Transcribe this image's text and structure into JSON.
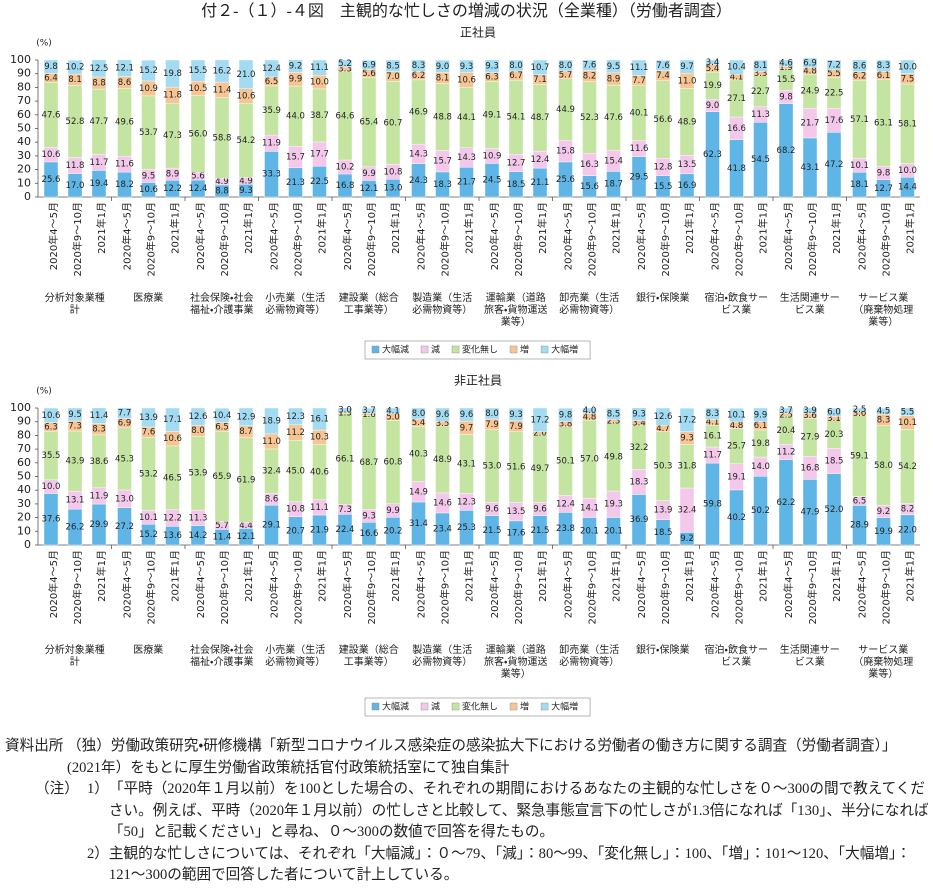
{
  "title": "付２-（１）-４図　主観的な忙しさの増減の状況（全業種）（労働者調査）",
  "chart_data": [
    {
      "type": "bar",
      "stacked": true,
      "subtitle": "正社員",
      "y_unit": "(%)",
      "ylim": [
        0,
        100
      ],
      "yticks": [
        0,
        10,
        20,
        30,
        40,
        50,
        60,
        70,
        80,
        90,
        100
      ],
      "grid": false,
      "legend": "bottom",
      "groups": [
        "分析対象業種計",
        "医療業",
        "社会保険・社会福祉・介護事業",
        "小売業（生活必需物資等）",
        "建設業（総合工事業等）",
        "製造業（生活必需物資等）",
        "運輸業（道路旅客・貨物運送業等）",
        "卸売業（生活必需物資等）",
        "銀行・保険業",
        "宿泊・飲食サービス業",
        "生活関連サービス業",
        "サービス業（廃棄物処理業等）"
      ],
      "categories": [
        "2020年4～5月",
        "2020年9～10月",
        "2021年1月",
        "2020年4～5月",
        "2020年9～10月",
        "2021年1月",
        "2020年4～5月",
        "2020年9～10月",
        "2021年1月",
        "2020年4～5月",
        "2020年9～10月",
        "2021年1月",
        "2020年4～5月",
        "2020年9～10月",
        "2021年1月",
        "2020年4～5月",
        "2020年9～10月",
        "2021年1月",
        "2020年4～5月",
        "2020年9～10月",
        "2021年1月",
        "2020年4～5月",
        "2020年9～10月",
        "2021年1月",
        "2020年4～5月",
        "2020年9～10月",
        "2021年1月",
        "2020年4～5月",
        "2020年9～10月",
        "2021年1月",
        "2020年4～5月",
        "2020年9～10月",
        "2021年1月",
        "2020年4～5月",
        "2020年9～10月",
        "2021年1月"
      ],
      "series": [
        {
          "name": "大幅減",
          "color": "#5fb6e6",
          "values": [
            25.6,
            17.0,
            19.4,
            18.2,
            10.6,
            12.2,
            12.4,
            8.8,
            9.3,
            33.3,
            21.3,
            22.5,
            16.8,
            12.1,
            13.0,
            24.3,
            18.3,
            21.7,
            24.5,
            18.5,
            21.1,
            25.6,
            15.6,
            18.7,
            29.5,
            15.5,
            16.9,
            62.3,
            41.8,
            54.5,
            68.2,
            43.1,
            47.2,
            18.1,
            12.7,
            14.4
          ],
          "value_labels": [
            "25.6",
            "17.0",
            "19.4",
            "18.2",
            "10.6",
            "12.2",
            "12.4",
            "8.8",
            "9.3",
            "33.3",
            "21.3",
            "22.5",
            "16.8",
            "12.1",
            "13.0",
            "24.3",
            "18.3",
            "21.7",
            "24.5",
            "18.5",
            "21.1",
            "25.6",
            "15.6",
            "18.7",
            "29.5",
            "15.5",
            "16.9",
            "62.3",
            "41.8",
            "54.5",
            "68.2",
            "43.1",
            "47.2",
            "18.1",
            "12.7",
            "14.4"
          ]
        },
        {
          "name": "減",
          "color": "#f3c8ea",
          "values": [
            10.6,
            11.8,
            11.7,
            11.6,
            9.5,
            8.9,
            5.6,
            4.9,
            4.9,
            11.9,
            15.7,
            17.7,
            10.2,
            9.9,
            10.8,
            14.3,
            15.7,
            14.3,
            10.9,
            12.7,
            12.4,
            15.8,
            16.3,
            15.4,
            11.6,
            12.8,
            13.5,
            9.0,
            16.6,
            11.3,
            9.8,
            21.7,
            17.6,
            10.1,
            9.8,
            10.0
          ],
          "value_labels": [
            "10.6",
            "11.8",
            "11.7",
            "11.6",
            "9.5",
            "8.9",
            "5.6",
            "4.9",
            "4.9",
            "11.9",
            "15.7",
            "17.7",
            "10.2",
            "9.9",
            "10.8",
            "14.3",
            "15.7",
            "14.3",
            "10.9",
            "12.7",
            "12.4",
            "15.8",
            "16.3",
            "15.4",
            "11.6",
            "12.8",
            "13.5",
            "9.0",
            "16.6",
            "11.3",
            "9.8",
            "21.7",
            "17.6",
            "10.1",
            "9.8",
            "10.0"
          ]
        },
        {
          "name": "変化無し",
          "color": "#c4e4a2",
          "values": [
            47.6,
            52.8,
            47.7,
            49.6,
            53.7,
            47.3,
            56.0,
            58.8,
            54.2,
            35.9,
            44.0,
            38.7,
            64.6,
            65.4,
            60.7,
            46.9,
            48.8,
            44.1,
            49.1,
            54.1,
            48.7,
            44.9,
            52.3,
            47.6,
            40.1,
            56.6,
            48.9,
            19.9,
            27.1,
            22.7,
            15.5,
            24.9,
            22.5,
            57.1,
            63.1,
            58.1
          ],
          "value_labels": [
            "47.6",
            "52.8",
            "47.7",
            "49.6",
            "53.7",
            "47.3",
            "56.0",
            "58.8",
            "54.2",
            "35.9",
            "44.0",
            "38.7",
            "64.6",
            "65.4",
            "60.7",
            "46.9",
            "48.8",
            "44.1",
            "49.1",
            "54.1",
            "48.7",
            "44.9",
            "52.3",
            "47.6",
            "40.1",
            "56.6",
            "48.9",
            "19.9",
            "27.1",
            "22.7",
            "15.5",
            "24.9",
            "22.5",
            "57.1",
            "63.1",
            "58.1"
          ]
        },
        {
          "name": "増",
          "color": "#f7c493",
          "values": [
            6.4,
            8.1,
            8.8,
            8.6,
            10.9,
            11.8,
            10.5,
            11.4,
            10.6,
            6.5,
            9.9,
            10.0,
            3.3,
            5.6,
            7.0,
            6.2,
            8.1,
            10.6,
            6.3,
            6.7,
            7.1,
            5.7,
            8.2,
            8.9,
            7.7,
            7.4,
            11.0,
            5.4,
            4.1,
            3.3,
            1.9,
            4.8,
            5.5,
            6.2,
            6.1,
            7.5
          ],
          "value_labels": [
            "6.4",
            "8.1",
            "8.8",
            "8.6",
            "10.9",
            "11.8",
            "10.5",
            "11.4",
            "10.6",
            "6.5",
            "9.9",
            "10.0",
            "3.3",
            "5.6",
            "7.0",
            "6.2",
            "8.1",
            "10.6",
            "6.3",
            "6.7",
            "7.1",
            "5.7",
            "8.2",
            "8.9",
            "7.7",
            "7.4",
            "11.0",
            "5.4",
            "4.1",
            "3.3",
            "1.9",
            "4.8",
            "5.5",
            "6.2",
            "6.1",
            "7.5"
          ]
        },
        {
          "name": "大幅増",
          "color": "#a3dcf2",
          "values": [
            9.8,
            10.2,
            12.5,
            12.1,
            15.2,
            19.8,
            15.5,
            16.2,
            21.0,
            12.4,
            9.2,
            11.1,
            5.2,
            6.9,
            8.5,
            8.3,
            9.0,
            9.3,
            9.3,
            8.0,
            10.7,
            8.0,
            7.6,
            9.5,
            11.1,
            7.6,
            9.7,
            3.4,
            10.4,
            8.1,
            4.6,
            6.9,
            7.2,
            8.6,
            8.3,
            10.0
          ],
          "value_labels": [
            "9.8",
            "10.2",
            "12.5",
            "12.1",
            "15.2",
            "19.8",
            "15.5",
            "16.2",
            "21.0",
            "12.4",
            "9.2",
            "11.1",
            "5.2",
            "6.9",
            "8.5",
            "8.3",
            "9.0",
            "9.3",
            "9.3",
            "8.0",
            "10.7",
            "8.0",
            "7.6",
            "9.5",
            "11.1",
            "7.6",
            "9.7",
            "3.4",
            "10.4",
            "8.1",
            "4.6",
            "6.9",
            "7.2",
            "8.6",
            "8.3",
            "10.0"
          ]
        }
      ]
    },
    {
      "type": "bar",
      "stacked": true,
      "subtitle": "非正社員",
      "y_unit": "(%)",
      "ylim": [
        0,
        100
      ],
      "yticks": [
        0,
        10,
        20,
        30,
        40,
        50,
        60,
        70,
        80,
        90,
        100
      ],
      "grid": false,
      "legend": "bottom",
      "groups": [
        "分析対象業種計",
        "医療業",
        "社会保険・社会福祉・介護事業",
        "小売業（生活必需物資等）",
        "建設業（総合工事業等）",
        "製造業（生活必需物資等）",
        "運輸業（道路旅客・貨物運送業等）",
        "卸売業（生活必需物資等）",
        "銀行・保険業",
        "宿泊・飲食サービス業",
        "生活関連サービス業",
        "サービス業（廃棄物処理業等）"
      ],
      "categories": [
        "2020年4～5月",
        "2020年9～10月",
        "2021年1月",
        "2020年4～5月",
        "2020年9～10月",
        "2021年1月",
        "2020年4～5月",
        "2020年9～10月",
        "2021年1月",
        "2020年4～5月",
        "2020年9～10月",
        "2021年1月",
        "2020年4～5月",
        "2020年9～10月",
        "2021年1月",
        "2020年4～5月",
        "2020年9～10月",
        "2021年1月",
        "2020年4～5月",
        "2020年9～10月",
        "2021年1月",
        "2020年4～5月",
        "2020年9～10月",
        "2021年1月",
        "2020年4～5月",
        "2020年9～10月",
        "2021年1月",
        "2020年4～5月",
        "2020年9～10月",
        "2021年1月",
        "2020年4～5月",
        "2020年9～10月",
        "2021年1月",
        "2020年4～5月",
        "2020年9～10月",
        "2021年1月"
      ],
      "series": [
        {
          "name": "大幅減",
          "color": "#5fb6e6",
          "values": [
            37.6,
            26.2,
            29.9,
            27.2,
            15.2,
            13.6,
            14.2,
            11.4,
            12.1,
            29.1,
            20.7,
            21.9,
            22.4,
            16.6,
            20.2,
            31.4,
            23.4,
            25.3,
            21.5,
            17.6,
            21.5,
            23.8,
            20.1,
            20.1,
            36.9,
            18.5,
            9.2,
            59.8,
            40.2,
            50.2,
            62.2,
            47.9,
            52.0,
            28.9,
            19.9,
            22.0
          ],
          "value_labels": [
            "37.6",
            "26.2",
            "29.9",
            "27.2",
            "15.2",
            "13.6",
            "14.2",
            "11.4",
            "12.1",
            "29.1",
            "20.7",
            "21.9",
            "22.4",
            "16.6",
            "20.2",
            "31.4",
            "23.4",
            "25.3",
            "21.5",
            "17.6",
            "21.5",
            "23.8",
            "20.1",
            "20.1",
            "36.9",
            "18.5",
            "9.2",
            "59.8",
            "40.2",
            "50.2",
            "62.2",
            "47.9",
            "52.0",
            "28.9",
            "19.9",
            "22.0"
          ]
        },
        {
          "name": "減",
          "color": "#f3c8ea",
          "values": [
            10.0,
            13.1,
            11.9,
            13.0,
            10.1,
            12.2,
            11.3,
            5.7,
            4.4,
            8.6,
            10.8,
            11.1,
            7.3,
            9.3,
            9.9,
            14.9,
            14.6,
            12.3,
            9.6,
            13.5,
            9.6,
            12.4,
            14.1,
            19.3,
            18.3,
            13.9,
            32.4,
            11.7,
            19.1,
            14.0,
            11.2,
            16.8,
            18.5,
            6.5,
            9.2,
            8.2
          ],
          "value_labels": [
            "10.0",
            "13.1",
            "11.9",
            "13.0",
            "10.1",
            "12.2",
            "11.3",
            "5.7",
            "4.4",
            "8.6",
            "10.8",
            "11.1",
            "7.3",
            "9.3",
            "9.9",
            "14.9",
            "14.6",
            "12.3",
            "9.6",
            "13.5",
            "9.6",
            "12.4",
            "14.1",
            "19.3",
            "18.3",
            "13.9",
            "32.4",
            "11.7",
            "19.1",
            "14.0",
            "11.2",
            "16.8",
            "18.5",
            "6.5",
            "9.2",
            "8.2"
          ]
        },
        {
          "name": "変化無し",
          "color": "#c4e4a2",
          "values": [
            35.5,
            43.9,
            38.6,
            45.3,
            53.2,
            46.5,
            53.9,
            65.9,
            61.9,
            32.4,
            45.0,
            40.6,
            66.1,
            68.7,
            60.8,
            40.3,
            48.9,
            43.1,
            53.0,
            51.6,
            49.7,
            50.1,
            57.0,
            49.8,
            32.2,
            50.3,
            31.8,
            16.1,
            25.7,
            19.8,
            20.4,
            27.9,
            20.3,
            59.1,
            58.0,
            54.2
          ],
          "value_labels": [
            "35.5",
            "43.9",
            "38.6",
            "45.3",
            "53.2",
            "46.5",
            "53.9",
            "65.9",
            "61.9",
            "32.4",
            "45.0",
            "40.6",
            "66.1",
            "68.7",
            "60.8",
            "40.3",
            "48.9",
            "43.1",
            "53.0",
            "51.6",
            "49.7",
            "50.1",
            "57.0",
            "49.8",
            "32.2",
            "50.3",
            "31.8",
            "16.1",
            "25.7",
            "19.8",
            "20.4",
            "27.9",
            "20.3",
            "59.1",
            "58.0",
            "54.2"
          ]
        },
        {
          "name": "増",
          "color": "#f7c493",
          "values": [
            6.3,
            7.3,
            8.3,
            6.9,
            7.6,
            10.6,
            8.0,
            6.5,
            8.7,
            11.0,
            11.2,
            10.3,
            1.3,
            1.6,
            5.0,
            5.4,
            3.5,
            9.7,
            7.9,
            7.9,
            2.0,
            3.8,
            4.8,
            2.3,
            3.4,
            4.7,
            9.3,
            4.1,
            4.8,
            6.1,
            2.5,
            3.6,
            3.1,
            3.0,
            8.3,
            10.1
          ],
          "value_labels": [
            "6.3",
            "7.3",
            "8.3",
            "6.9",
            "7.6",
            "10.6",
            "8.0",
            "6.5",
            "8.7",
            "11.0",
            "11.2",
            "10.3",
            "1.3",
            "1.6",
            "5.0",
            "5.4",
            "3.5",
            "9.7",
            "7.9",
            "7.9",
            "2.0",
            "3.8",
            "4.8",
            "2.3",
            "3.4",
            "4.7",
            "9.3",
            "4.1",
            "4.8",
            "6.1",
            "2.5",
            "3.6",
            "3.1",
            "3.0",
            "8.3",
            "10.1"
          ]
        },
        {
          "name": "大幅増",
          "color": "#a3dcf2",
          "values": [
            10.6,
            9.5,
            11.4,
            7.7,
            13.9,
            17.1,
            12.6,
            10.4,
            12.9,
            18.9,
            12.3,
            16.1,
            3.0,
            3.7,
            4.1,
            8.0,
            9.6,
            9.6,
            8.0,
            9.3,
            17.2,
            9.8,
            4.0,
            8.5,
            9.3,
            12.6,
            17.2,
            8.3,
            10.1,
            9.9,
            3.7,
            3.9,
            6.0,
            2.5,
            4.5,
            5.5
          ],
          "value_labels": [
            "10.6",
            "9.5",
            "11.4",
            "7.7",
            "13.9",
            "17.1",
            "12.6",
            "10.4",
            "12.9",
            "18.9",
            "12.3",
            "16.1",
            "3.0",
            "3.7",
            "4.1",
            "8.0",
            "9.6",
            "9.6",
            "8.0",
            "9.3",
            "17.2",
            "9.8",
            "4.0",
            "8.5",
            "9.3",
            "12.6",
            "17.2",
            "8.3",
            "10.1",
            "9.9",
            "3.7",
            "3.9",
            "6.0",
            "2.5",
            "4.5",
            "5.5"
          ]
        }
      ]
    }
  ],
  "source": {
    "label": "資料出所",
    "text": "（独）労働政策研究・研修機構「新型コロナウイルス感染症の感染拡大下における労働者の働き方に関する調査（労働者調査）」(2021年）をもとに厚生労働省政策統括官付政策統括室にて独自集計"
  },
  "notes": {
    "label": "（注）",
    "items": [
      {
        "num": "1）",
        "text": "「平時（2020年１月以前）を100とした場合の、それぞれの期間におけるあなたの主観的な忙しさを０～300の間で教えてください。例えば、平時（2020年１月以前）の忙しさと比較して、緊急事態宣言下の忙しさが1.3倍になれば「130」、半分になれば「50」と記載ください」と尋ね、０～300の数値で回答を得たもの。"
      },
      {
        "num": "2）",
        "text": "主観的な忙しさについては、それぞれ「大幅減」：０～79、「減」：80～99、「変化無し」：100、「増」：101～120、「大幅増」：121～300の範囲で回答した者について計上している。"
      }
    ]
  }
}
